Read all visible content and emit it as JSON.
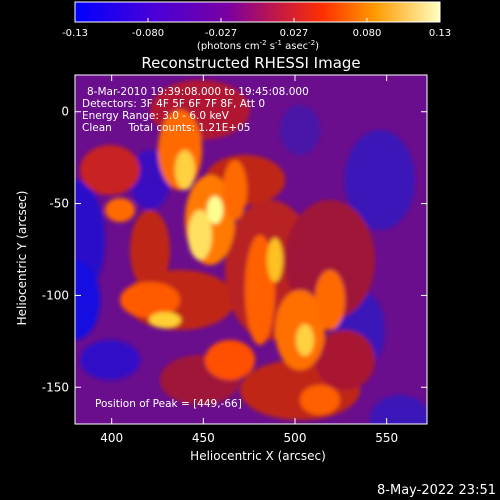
{
  "colorbar": {
    "ticks": [
      "-0.13",
      "-0.080",
      "-0.027",
      "0.027",
      "0.080",
      "0.13"
    ],
    "unit_label": "(photons cm",
    "unit_exp1": "-2",
    "unit_mid": " s",
    "unit_exp2": "-1",
    "unit_mid2": " asec",
    "unit_exp3": "-2",
    "unit_end": ")"
  },
  "chart_data": {
    "type": "heatmap",
    "title": "Reconstructed RHESSI Image",
    "xlabel": "Heliocentric X (arcsec)",
    "ylabel": "Heliocentric Y (arcsec)",
    "xlim": [
      380,
      572
    ],
    "ylim": [
      -170,
      20
    ],
    "xticks": [
      400,
      450,
      500,
      550
    ],
    "yticks": [
      0,
      -50,
      -100,
      -150
    ],
    "color_range": [
      -0.13,
      0.13
    ],
    "annotations": [
      "8-Mar-2010 19:39:08.000 to 19:45:08.000",
      "Detectors: 3F 4F 5F 6F 7F 8F, Att 0",
      "Energy Range: 3.0 - 6.0 keV",
      "Clean     Total counts: 1.21E+05"
    ],
    "peak_label": "Position of Peak = [449,-66]",
    "peak": [
      449,
      -66
    ]
  },
  "footer": {
    "timestamp": "8-May-2022 23:51"
  }
}
